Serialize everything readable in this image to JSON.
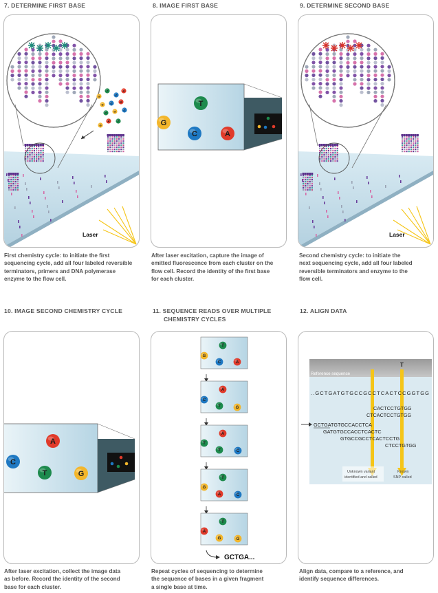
{
  "steps": [
    {
      "title": "7. DETERMINE FIRST BASE",
      "caption": [
        "First chemistry cycle: to initiate the first",
        "sequencing cycle, add all four labeled reversible",
        "terminators, primers and DNA polymerase",
        "enzyme to the flow cell."
      ],
      "laser_label": "Laser",
      "free_bases": [
        "G",
        "T",
        "C",
        "A",
        "G",
        "C",
        "A",
        "T",
        "G",
        "C",
        "A",
        "T",
        "G"
      ]
    },
    {
      "title": "8. IMAGE FIRST BASE",
      "caption": [
        "After laser excitation, capture the image of",
        "emitted fluorescence from each cluster on the",
        "flow cell. Record the identity of the first base",
        "for each cluster."
      ],
      "bases": [
        "T",
        "G",
        "C",
        "A"
      ]
    },
    {
      "title": "9. DETERMINE SECOND BASE",
      "caption": [
        "Second chemistry cycle: to initiate the",
        "next sequencing cycle, add all four labeled",
        "reversible terminators and enzyme to the",
        "flow cell."
      ],
      "laser_label": "Laser"
    },
    {
      "title": "10. IMAGE SECOND CHEMISTRY CYCLE",
      "caption": [
        "After laser excitation, collect the image data",
        "as before. Record the identity of the second",
        "base for each cluster."
      ],
      "bases": [
        "A",
        "C",
        "T",
        "G"
      ]
    },
    {
      "title_lines": [
        "11. SEQUENCE READS OVER MULTIPLE",
        "CHEMISTRY CYCLES"
      ],
      "caption": [
        "Repeat cycles of sequencing to determine",
        "the sequence of bases in a given fragment",
        "a single base at time."
      ],
      "panels": [
        [
          "T",
          "G",
          "C",
          "A"
        ],
        [
          "A",
          "C",
          "T",
          "G"
        ],
        [
          "A",
          "T",
          "T",
          "C"
        ],
        [
          "T",
          "G",
          "A",
          "C"
        ],
        [
          "T",
          "A",
          "G",
          "G"
        ]
      ],
      "result": "GCTGA..."
    },
    {
      "title": "12. ALIGN DATA",
      "caption": [
        "Align data, compare to a reference, and",
        "identify sequence differences."
      ],
      "reference_label": "Reference sequence",
      "marker_base": "T",
      "reference_sequence": "..GCTGATGTGCCGCCTCACTCCGGTGG",
      "reads": [
        "CACTCCTGTGG",
        "CTCACTCCTGTGG",
        "GCTGATGTGCCACCTCA",
        "GATGTGCCACCTCACTC",
        "GTGCCGCCTCACTCCTG",
        "CTCCTGTGG"
      ],
      "annotation_left": [
        "Unknown variant",
        "identified and called"
      ],
      "annotation_right": [
        "Known",
        "SNP called"
      ]
    }
  ],
  "colors": {
    "A": "#e03a2a",
    "C": "#1e78c2",
    "G": "#f3b62b",
    "T": "#1d8a4d",
    "arrow": "#f5c518",
    "flowcell": "#cfe4ef"
  }
}
